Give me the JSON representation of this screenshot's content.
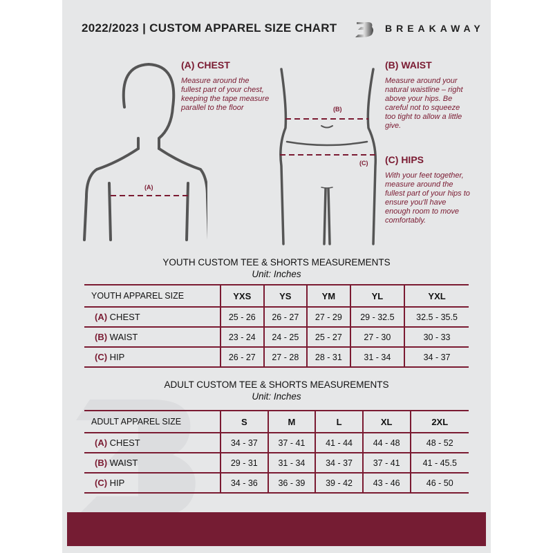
{
  "header": {
    "title": "2022/2023  |  CUSTOM APPAREL SIZE CHART",
    "brand": "BREAKAWAY",
    "logo_letter": "B"
  },
  "colors": {
    "accent": "#7a1a31",
    "band": "#751c33",
    "background": "#e6e7e8"
  },
  "measures": {
    "chest": {
      "heading": "(A) CHEST",
      "desc": "Measure around the fullest part of your chest, keeping the tape measure parallel to the floor",
      "marker": "(A)"
    },
    "waist": {
      "heading": "(B) WAIST",
      "desc": "Measure around your natural waistline – right above your hips. Be careful not to squeeze too tight to allow a little give.",
      "marker": "(B)"
    },
    "hips": {
      "heading": "(C) HIPS",
      "desc": "With your feet together, measure around the fullest part of your hips to ensure you'll have enough room to move comfortably.",
      "marker": "(C)"
    }
  },
  "youth": {
    "title": "YOUTH CUSTOM TEE & SHORTS MEASUREMENTS",
    "unit": "Unit: Inches",
    "header": "YOUTH APPAREL SIZE",
    "sizes": [
      "YXS",
      "YS",
      "YM",
      "YL",
      "YXL"
    ],
    "rows": [
      {
        "letter": "(A)",
        "label": "CHEST",
        "values": [
          "25 - 26",
          "26 - 27",
          "27 - 29",
          "29 - 32.5",
          "32.5 - 35.5"
        ]
      },
      {
        "letter": "(B)",
        "label": "WAIST",
        "values": [
          "23 - 24",
          "24 - 25",
          "25 - 27",
          "27 - 30",
          "30 - 33"
        ]
      },
      {
        "letter": "(C)",
        "label": "HIP",
        "values": [
          "26 - 27",
          "27 - 28",
          "28 - 31",
          "31 - 34",
          "34 - 37"
        ]
      }
    ]
  },
  "adult": {
    "title": "ADULT CUSTOM TEE & SHORTS MEASUREMENTS",
    "unit": "Unit: Inches",
    "header": "ADULT APPAREL SIZE",
    "sizes": [
      "S",
      "M",
      "L",
      "XL",
      "2XL"
    ],
    "rows": [
      {
        "letter": "(A)",
        "label": "CHEST",
        "values": [
          "34 - 37",
          "37 - 41",
          "41 - 44",
          "44 - 48",
          "48 - 52"
        ]
      },
      {
        "letter": "(B)",
        "label": "WAIST",
        "values": [
          "29 - 31",
          "31 - 34",
          "34 - 37",
          "37 - 41",
          "41 - 45.5"
        ]
      },
      {
        "letter": "(C)",
        "label": "HIP",
        "values": [
          "34 - 36",
          "36 - 39",
          "39 - 42",
          "43 - 46",
          "46 - 50"
        ]
      }
    ]
  }
}
